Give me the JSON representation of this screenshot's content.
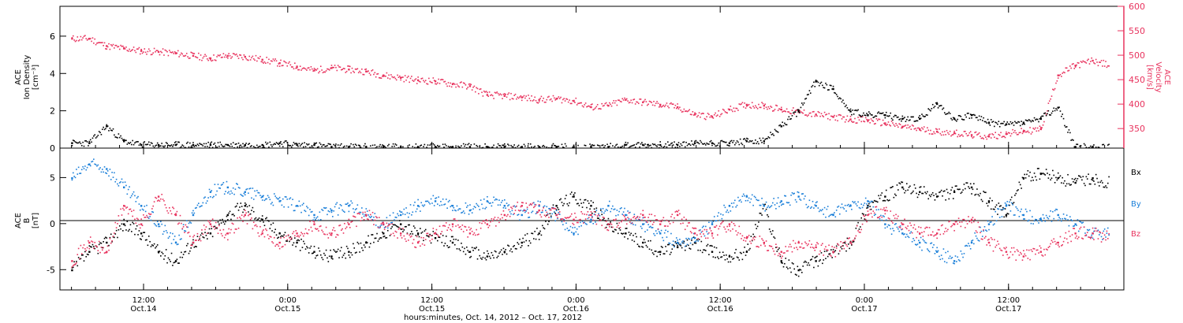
{
  "chart_data": [
    {
      "type": "scatter",
      "panel": "top",
      "ylabel_left": [
        "ACE",
        "Ion Density",
        "[cm⁻³]"
      ],
      "ylabel_right": [
        "ACE",
        "Velocity",
        "[km/s]"
      ],
      "ylim_left": [
        0,
        7.6
      ],
      "left_ticks": [
        0,
        2,
        4,
        6
      ],
      "ylim_right": [
        310,
        600
      ],
      "right_ticks": [
        350,
        400,
        450,
        500,
        550,
        600
      ],
      "colors": {
        "density": "#000000",
        "velocity": "#e8335e"
      },
      "series": [
        {
          "name": "Ion Density",
          "axis": "left",
          "color": "#000000",
          "x": [
            0,
            0.06,
            0.12,
            0.18,
            0.24,
            0.3,
            0.36,
            0.42,
            0.48,
            0.54,
            0.6,
            0.66,
            0.72,
            0.78,
            0.84,
            0.9,
            0.96,
            1.02,
            1.08,
            1.14,
            1.2,
            1.26,
            1.32,
            1.38,
            1.44,
            1.5,
            1.56,
            1.62,
            1.68,
            1.74,
            1.8,
            1.86,
            1.92,
            1.98,
            2.04,
            2.1,
            2.16,
            2.22,
            2.28,
            2.34,
            2.4,
            2.46,
            2.52,
            2.58,
            2.64,
            2.7,
            2.76,
            2.82,
            2.88,
            2.94,
            3.0,
            3.06,
            3.12,
            3.18,
            3.24,
            3.3,
            3.36,
            3.42,
            3.48,
            3.54,
            3.6
          ],
          "y": [
            0.3,
            0.3,
            1.2,
            0.4,
            0.2,
            0.2,
            0.2,
            0.2,
            0.2,
            0.2,
            0.2,
            0.2,
            0.3,
            0.2,
            0.2,
            0.1,
            0.1,
            0.1,
            0.1,
            0.1,
            0.1,
            0.1,
            0.1,
            0.1,
            0.1,
            0.1,
            0.1,
            0.1,
            0.1,
            0.1,
            0.1,
            0.1,
            0.2,
            0.2,
            0.2,
            0.2,
            0.3,
            0.3,
            0.3,
            0.4,
            0.4,
            1.2,
            2.0,
            3.6,
            3.2,
            2.0,
            1.8,
            1.8,
            1.6,
            1.6,
            2.4,
            1.6,
            1.8,
            1.4,
            1.3,
            1.4,
            1.6,
            2.2,
            0.1,
            0.1,
            0.1
          ]
        },
        {
          "name": "Velocity",
          "axis": "right",
          "color": "#e8335e",
          "x": [
            0,
            0.06,
            0.12,
            0.18,
            0.24,
            0.3,
            0.36,
            0.42,
            0.48,
            0.54,
            0.6,
            0.66,
            0.72,
            0.78,
            0.84,
            0.9,
            0.96,
            1.02,
            1.08,
            1.14,
            1.2,
            1.26,
            1.32,
            1.38,
            1.44,
            1.5,
            1.56,
            1.62,
            1.68,
            1.74,
            1.8,
            1.86,
            1.92,
            1.98,
            2.04,
            2.1,
            2.16,
            2.22,
            2.28,
            2.34,
            2.4,
            2.46,
            2.52,
            2.58,
            2.64,
            2.7,
            2.76,
            2.82,
            2.88,
            2.94,
            3.0,
            3.06,
            3.12,
            3.18,
            3.24,
            3.3,
            3.36,
            3.42,
            3.48,
            3.54,
            3.6
          ],
          "y": [
            535,
            535,
            520,
            515,
            510,
            508,
            505,
            500,
            495,
            500,
            498,
            492,
            485,
            478,
            470,
            475,
            472,
            468,
            460,
            455,
            450,
            448,
            442,
            438,
            420,
            418,
            415,
            410,
            412,
            408,
            395,
            398,
            410,
            405,
            400,
            395,
            380,
            375,
            390,
            400,
            398,
            390,
            385,
            380,
            375,
            370,
            368,
            362,
            355,
            350,
            345,
            342,
            338,
            335,
            340,
            345,
            350,
            460,
            480,
            490,
            480
          ]
        }
      ]
    },
    {
      "type": "scatter",
      "panel": "bottom",
      "ylabel_left": [
        "ACE",
        "B",
        "[nT]"
      ],
      "ylim": [
        -7.2,
        8.2
      ],
      "ticks": [
        -5,
        0,
        5
      ],
      "zero_line": true,
      "legend": {
        "placement": "right",
        "labels": [
          "Bx",
          "By",
          "Bz"
        ]
      },
      "series": [
        {
          "name": "Bx",
          "color": "#000000",
          "x": [
            0,
            0.06,
            0.12,
            0.18,
            0.24,
            0.3,
            0.36,
            0.42,
            0.48,
            0.54,
            0.6,
            0.66,
            0.72,
            0.78,
            0.84,
            0.9,
            0.96,
            1.02,
            1.08,
            1.14,
            1.2,
            1.26,
            1.32,
            1.38,
            1.44,
            1.5,
            1.56,
            1.62,
            1.68,
            1.74,
            1.8,
            1.86,
            1.92,
            1.98,
            2.04,
            2.1,
            2.16,
            2.22,
            2.28,
            2.34,
            2.4,
            2.46,
            2.52,
            2.58,
            2.64,
            2.7,
            2.76,
            2.82,
            2.88,
            2.94,
            3.0,
            3.06,
            3.12,
            3.18,
            3.24,
            3.3,
            3.36,
            3.42,
            3.48,
            3.54,
            3.6
          ],
          "y": [
            -5.0,
            -3.0,
            -2.0,
            0.0,
            -1.0,
            -3.0,
            -4.0,
            -2.0,
            -1.0,
            1.0,
            2.0,
            0.5,
            -1.0,
            -2.0,
            -3.0,
            -3.5,
            -3.0,
            -2.0,
            -1.0,
            0.0,
            -1.0,
            -1.5,
            -2.0,
            -3.0,
            -3.5,
            -3.0,
            -2.0,
            -1.0,
            2.0,
            3.0,
            2.0,
            0.0,
            -1.0,
            -2.0,
            -3.0,
            -2.5,
            -2.0,
            -3.0,
            -3.5,
            -3.0,
            2.0,
            -4.0,
            -5.0,
            -4.0,
            -3.0,
            -2.0,
            2.0,
            3.0,
            4.0,
            3.5,
            3.0,
            3.5,
            4.0,
            2.5,
            1.0,
            5.0,
            5.5,
            5.0,
            4.5,
            5.0,
            4.5
          ]
        },
        {
          "name": "By",
          "color": "#1a7fd9",
          "x": [
            0,
            0.06,
            0.12,
            0.18,
            0.24,
            0.3,
            0.36,
            0.42,
            0.48,
            0.54,
            0.6,
            0.66,
            0.72,
            0.78,
            0.84,
            0.9,
            0.96,
            1.02,
            1.08,
            1.14,
            1.2,
            1.26,
            1.32,
            1.38,
            1.44,
            1.5,
            1.56,
            1.62,
            1.68,
            1.74,
            1.8,
            1.86,
            1.92,
            1.98,
            2.04,
            2.1,
            2.16,
            2.22,
            2.28,
            2.34,
            2.4,
            2.46,
            2.52,
            2.58,
            2.64,
            2.7,
            2.76,
            2.82,
            2.88,
            2.94,
            3.0,
            3.06,
            3.12,
            3.18,
            3.24,
            3.3,
            3.36,
            3.42,
            3.48,
            3.54,
            3.6
          ],
          "y": [
            5.0,
            6.5,
            6.0,
            4.0,
            2.0,
            0.0,
            -2.0,
            1.0,
            3.5,
            4.0,
            3.5,
            3.0,
            2.5,
            2.0,
            1.0,
            1.5,
            2.0,
            1.0,
            0.0,
            1.0,
            2.0,
            2.5,
            2.0,
            1.5,
            2.5,
            2.0,
            1.0,
            2.0,
            1.0,
            -1.0,
            0.5,
            2.0,
            1.0,
            0.0,
            -1.0,
            -2.0,
            -1.5,
            0.0,
            2.0,
            3.0,
            2.0,
            2.5,
            3.0,
            2.0,
            1.0,
            2.0,
            2.5,
            0.0,
            -1.0,
            -2.0,
            -3.0,
            -4.0,
            -2.0,
            0.0,
            2.0,
            1.0,
            0.5,
            1.0,
            0.0,
            -1.0,
            -1.0
          ]
        },
        {
          "name": "Bz",
          "color": "#e8335e",
          "x": [
            0,
            0.06,
            0.12,
            0.18,
            0.24,
            0.3,
            0.36,
            0.42,
            0.48,
            0.54,
            0.6,
            0.66,
            0.72,
            0.78,
            0.84,
            0.9,
            0.96,
            1.02,
            1.08,
            1.14,
            1.2,
            1.26,
            1.32,
            1.38,
            1.44,
            1.5,
            1.56,
            1.62,
            1.68,
            1.74,
            1.8,
            1.86,
            1.92,
            1.98,
            2.04,
            2.1,
            2.16,
            2.22,
            2.28,
            2.34,
            2.4,
            2.46,
            2.52,
            2.58,
            2.64,
            2.7,
            2.76,
            2.82,
            2.88,
            2.94,
            3.0,
            3.06,
            3.12,
            3.18,
            3.24,
            3.3,
            3.36,
            3.42,
            3.48,
            3.54,
            3.6
          ],
          "y": [
            -4.0,
            -2.0,
            -3.0,
            2.0,
            0.0,
            3.0,
            1.0,
            -2.0,
            0.0,
            -1.0,
            1.0,
            -1.0,
            -2.0,
            -1.0,
            0.0,
            -1.0,
            0.0,
            1.0,
            0.0,
            -1.0,
            -2.0,
            -1.0,
            0.0,
            -1.0,
            0.0,
            1.0,
            2.0,
            1.5,
            1.0,
            0.5,
            1.0,
            0.0,
            0.5,
            1.0,
            0.0,
            1.0,
            -1.0,
            -1.0,
            0.0,
            -1.5,
            -2.0,
            -3.0,
            -2.0,
            -2.5,
            -3.0,
            -2.0,
            1.0,
            1.5,
            0.0,
            -1.0,
            -1.0,
            0.0,
            0.5,
            -2.0,
            -3.0,
            -3.5,
            -3.0,
            -2.0,
            -1.0,
            -1.0,
            -1.5
          ]
        }
      ]
    }
  ],
  "x_axis": {
    "range": [
      -0.04,
      3.65
    ],
    "ticks": [
      {
        "x": 0.25,
        "line1": "12:00",
        "line2": "Oct.14"
      },
      {
        "x": 0.75,
        "line1": "0:00",
        "line2": "Oct.15"
      },
      {
        "x": 1.25,
        "line1": "12:00",
        "line2": "Oct.15"
      },
      {
        "x": 1.75,
        "line1": "0:00",
        "line2": "Oct.16"
      },
      {
        "x": 2.25,
        "line1": "12:00",
        "line2": "Oct.16"
      },
      {
        "x": 2.75,
        "line1": "0:00",
        "line2": "Oct.17"
      },
      {
        "x": 3.25,
        "line1": "12:00",
        "line2": "Oct.17"
      }
    ],
    "label": "hours:minutes, Oct. 14, 2012 – Oct. 17, 2012"
  }
}
